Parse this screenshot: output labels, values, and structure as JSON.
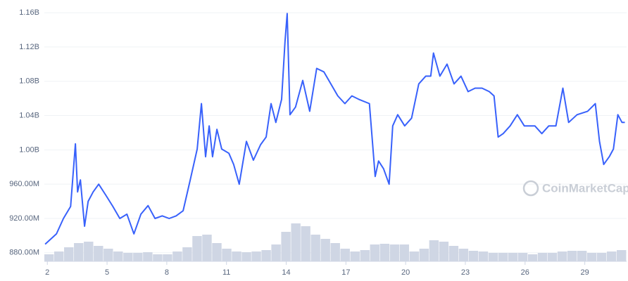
{
  "chart_data": {
    "type": "line",
    "watermark": "CoinMarketCap",
    "x": [
      1.89,
      2.46,
      2.81,
      3.17,
      3.41,
      3.52,
      3.66,
      3.87,
      4.05,
      4.3,
      4.58,
      4.94,
      5.29,
      5.64,
      6.0,
      6.35,
      6.7,
      7.06,
      7.41,
      7.77,
      8.12,
      8.47,
      8.82,
      9.18,
      9.53,
      9.74,
      9.95,
      10.13,
      10.3,
      10.52,
      10.76,
      11.12,
      11.36,
      11.64,
      12.0,
      12.35,
      12.71,
      12.99,
      13.24,
      13.48,
      13.77,
      13.94,
      14.05,
      14.19,
      14.47,
      14.83,
      15.18,
      15.53,
      15.89,
      16.24,
      16.59,
      16.95,
      17.3,
      17.65,
      18.18,
      18.47,
      18.64,
      18.89,
      19.17,
      19.35,
      19.6,
      19.95,
      20.3,
      20.66,
      21.01,
      21.26,
      21.4,
      21.72,
      22.08,
      22.43,
      22.78,
      23.14,
      23.49,
      23.84,
      24.2,
      24.44,
      24.65,
      24.9,
      25.25,
      25.61,
      25.96,
      26.49,
      26.84,
      27.19,
      27.55,
      27.9,
      28.19,
      28.61,
      29.14,
      29.53,
      29.74,
      29.95,
      30.23,
      30.44,
      30.66,
      30.87,
      31.01
    ],
    "series": [
      {
        "color": "#3861fb",
        "values": [
          890,
          902,
          920,
          934,
          1007,
          951,
          965,
          911,
          940,
          951,
          960,
          947,
          934,
          920,
          925,
          902,
          925,
          935,
          920,
          923,
          920,
          923,
          929,
          965,
          1001,
          1054,
          992,
          1028,
          992,
          1024,
          1001,
          996,
          983,
          960,
          1010,
          988,
          1006,
          1015,
          1054,
          1032,
          1059,
          1126,
          1159,
          1041,
          1050,
          1081,
          1045,
          1095,
          1091,
          1077,
          1063,
          1054,
          1063,
          1059,
          1054,
          969,
          987,
          978,
          960,
          1028,
          1041,
          1028,
          1037,
          1077,
          1086,
          1086,
          1113,
          1086,
          1100,
          1077,
          1086,
          1068,
          1072,
          1072,
          1068,
          1063,
          1015,
          1019,
          1028,
          1041,
          1028,
          1028,
          1019,
          1028,
          1028,
          1072,
          1032,
          1041,
          1045,
          1054,
          1010,
          983,
          992,
          1001,
          1041,
          1032,
          1032
        ]
      }
    ],
    "volume": {
      "color": "#cfd6e4",
      "values": [
        10,
        14,
        20,
        26,
        28,
        22,
        18,
        14,
        12,
        12,
        13,
        10,
        10,
        14,
        20,
        36,
        38,
        26,
        18,
        14,
        13,
        14,
        16,
        24,
        42,
        54,
        50,
        38,
        32,
        26,
        18,
        14,
        16,
        24,
        25,
        24,
        24,
        14,
        18,
        30,
        28,
        22,
        18,
        15,
        14,
        12,
        12,
        12,
        12,
        10,
        12,
        12,
        14,
        15,
        15,
        12,
        12,
        14,
        16
      ]
    },
    "xlim": [
      1.85,
      31.1
    ],
    "xticks": [
      2,
      5,
      8,
      11,
      14,
      17,
      20,
      23,
      26,
      29
    ],
    "ylim": [
      870,
      1165
    ],
    "yticks": [
      {
        "value": 880,
        "label": "880.00M"
      },
      {
        "value": 920,
        "label": "920.00M"
      },
      {
        "value": 960,
        "label": "960.00M"
      },
      {
        "value": 1000,
        "label": "1.00B"
      },
      {
        "value": 1040,
        "label": "1.04B"
      },
      {
        "value": 1080,
        "label": "1.08B"
      },
      {
        "value": 1120,
        "label": "1.12B"
      },
      {
        "value": 1160,
        "label": "1.16B"
      }
    ],
    "grid": true
  }
}
